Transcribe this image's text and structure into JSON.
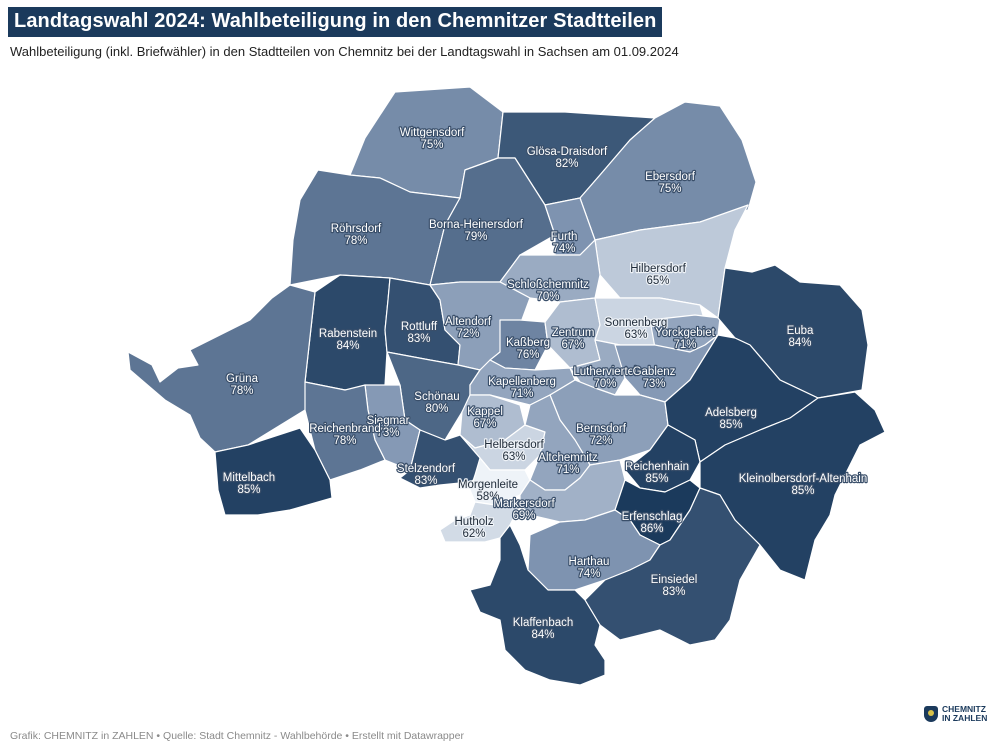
{
  "title": "Landtagswahl 2024: Wahlbeteiligung in den Chemnitzer Stadtteilen",
  "subtitle": "Wahlbeteiligung (inkl. Briefwähler) in den Stadtteilen von Chemnitz bei der Landtagswahl in Sachsen am 01.09.2024",
  "footer": "Grafik: CHEMNITZ in ZAHLEN • Quelle: Stadt Chemnitz - Wahlbehörde • Erstellt mit Datawrapper",
  "brand": {
    "line1": "CHEMNITZ",
    "line2": "IN ZAHLEN"
  },
  "colors": {
    "low": "#eef3f8",
    "mid": "#7e93b0",
    "high": "#1b3a5c",
    "title_bg": "#1b3a5c"
  },
  "map_data": {
    "metric": "Wahlbeteiligung",
    "unit": "%",
    "districts": [
      {
        "id": "wittgensdorf",
        "name": "Wittgensdorf",
        "value": "75%"
      },
      {
        "id": "gloesa",
        "name": "Glösa-Draisdorf",
        "value": "82%"
      },
      {
        "id": "ebersdorf",
        "name": "Ebersdorf",
        "value": "75%"
      },
      {
        "id": "roehrsdorf",
        "name": "Röhrsdorf",
        "value": "78%"
      },
      {
        "id": "borna",
        "name": "Borna-Heinersdorf",
        "value": "79%"
      },
      {
        "id": "furth",
        "name": "Furth",
        "value": "74%"
      },
      {
        "id": "hilbersdorf",
        "name": "Hilbersdorf",
        "value": "65%"
      },
      {
        "id": "schloss",
        "name": "Schloßchemnitz",
        "value": "70%"
      },
      {
        "id": "rabenstein",
        "name": "Rabenstein",
        "value": "84%"
      },
      {
        "id": "rottluff",
        "name": "Rottluff",
        "value": "83%"
      },
      {
        "id": "altendorf",
        "name": "Altendorf",
        "value": "72%"
      },
      {
        "id": "kassberg",
        "name": "Kaßberg",
        "value": "76%"
      },
      {
        "id": "zentrum",
        "name": "Zentrum",
        "value": "67%"
      },
      {
        "id": "sonnenberg",
        "name": "Sonnenberg",
        "value": "63%"
      },
      {
        "id": "yorck",
        "name": "Yorckgebiet",
        "value": "71%"
      },
      {
        "id": "euba",
        "name": "Euba",
        "value": "84%"
      },
      {
        "id": "gruena",
        "name": "Grüna",
        "value": "78%"
      },
      {
        "id": "schoenau",
        "name": "Schönau",
        "value": "80%"
      },
      {
        "id": "kapellenberg",
        "name": "Kapellenberg",
        "value": "71%"
      },
      {
        "id": "lutherviertel",
        "name": "Lutherviertel",
        "value": "70%"
      },
      {
        "id": "gablenz",
        "name": "Gablenz",
        "value": "73%"
      },
      {
        "id": "siegmar",
        "name": "Siegmar",
        "value": "73%"
      },
      {
        "id": "reichenbrand",
        "name": "Reichenbrand",
        "value": "78%"
      },
      {
        "id": "kappel",
        "name": "Kappel",
        "value": "67%"
      },
      {
        "id": "bernsdorf",
        "name": "Bernsdorf",
        "value": "72%"
      },
      {
        "id": "adelsberg",
        "name": "Adelsberg",
        "value": "85%"
      },
      {
        "id": "helbersdorf",
        "name": "Helbersdorf",
        "value": "63%"
      },
      {
        "id": "altchemnitz",
        "name": "Altchemnitz",
        "value": "71%"
      },
      {
        "id": "mittelbach",
        "name": "Mittelbach",
        "value": "85%"
      },
      {
        "id": "stelzendorf",
        "name": "Stelzendorf",
        "value": "83%"
      },
      {
        "id": "morgenleite",
        "name": "Morgenleite",
        "value": "58%"
      },
      {
        "id": "reichenhain",
        "name": "Reichenhain",
        "value": "85%"
      },
      {
        "id": "kleinolbersdorf",
        "name": "Kleinolbersdorf-Altenhain",
        "value": "85%"
      },
      {
        "id": "markersdorf",
        "name": "Markersdorf",
        "value": "69%"
      },
      {
        "id": "erfenschlag",
        "name": "Erfenschlag",
        "value": "86%"
      },
      {
        "id": "hutholz",
        "name": "Hutholz",
        "value": "62%"
      },
      {
        "id": "harthau",
        "name": "Harthau",
        "value": "74%"
      },
      {
        "id": "einsiedel",
        "name": "Einsiedel",
        "value": "83%"
      },
      {
        "id": "klaffenbach",
        "name": "Klaffenbach",
        "value": "84%"
      }
    ]
  }
}
